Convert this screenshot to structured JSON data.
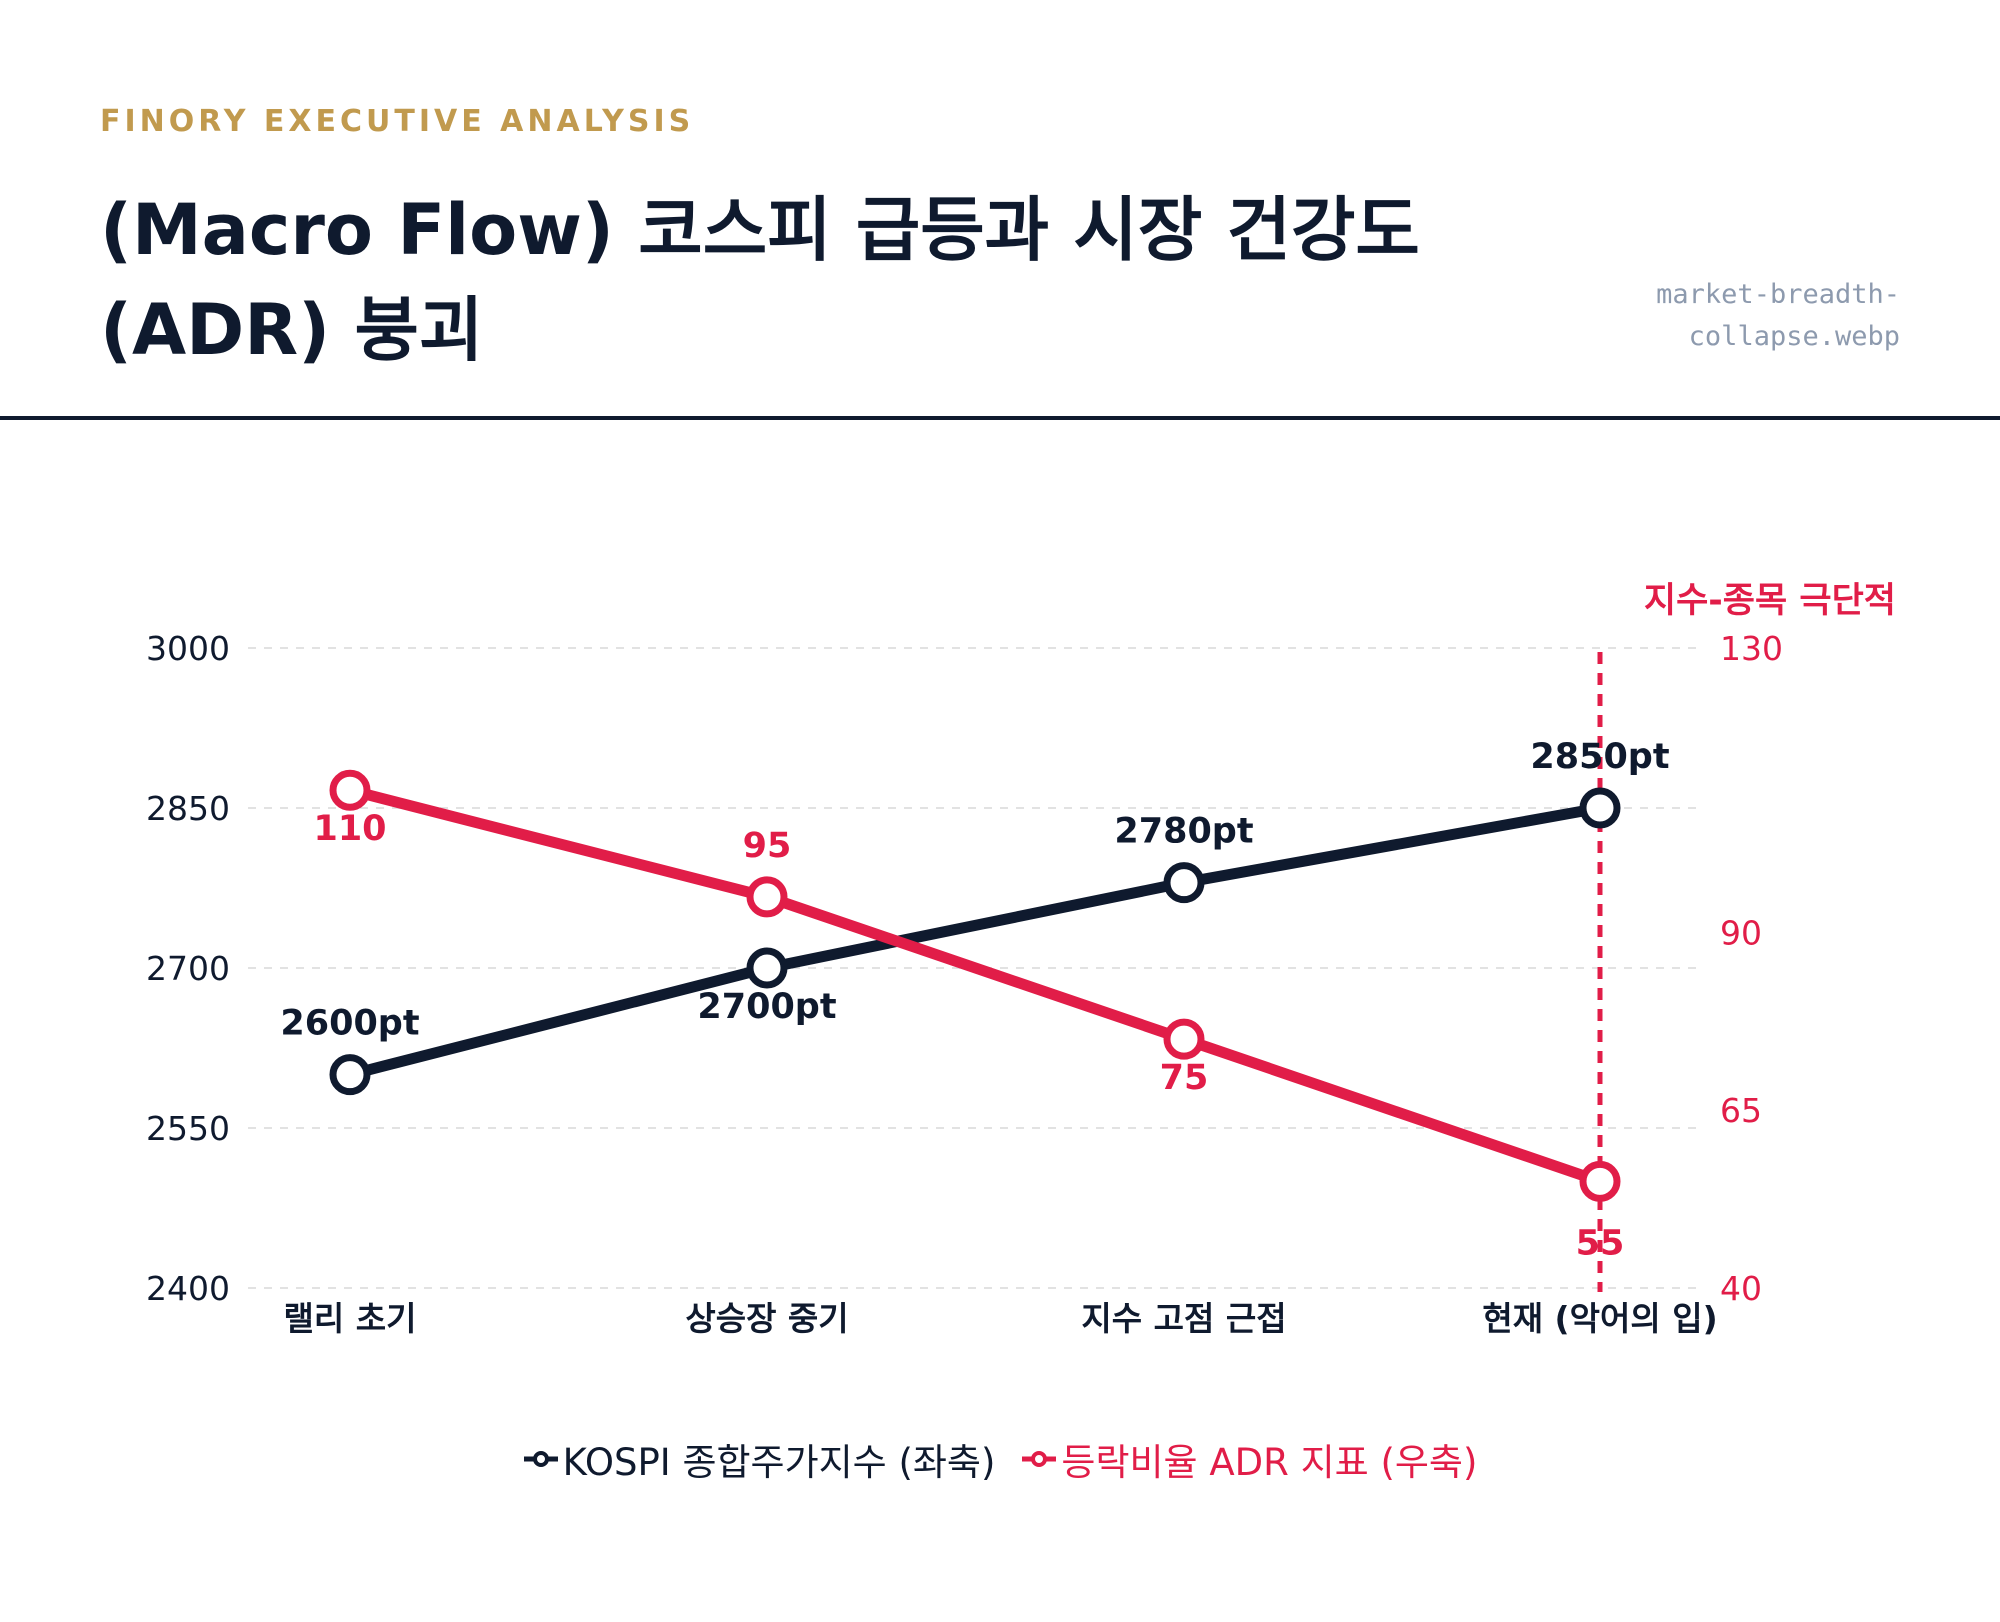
{
  "header": {
    "kicker": "FINORY EXECUTIVE ANALYSIS",
    "title": "(Macro Flow) 코스피 급등과 시장 건강도 (ADR) 붕괴",
    "filename": "market-breadth-collapse.webp"
  },
  "colors": {
    "kospi": "#0F1A2E",
    "adr": "#E11D48",
    "kicker": "#C19A4E",
    "grid": "#E2E2E2"
  },
  "chart_data": {
    "type": "line",
    "categories": [
      "랠리 초기",
      "상승장 중기",
      "지수 고점 근접",
      "현재 (악어의 입)"
    ],
    "left_axis": {
      "ticks": [
        "2400",
        "2550",
        "2700",
        "2850",
        "3000"
      ],
      "range": [
        2400,
        3000
      ]
    },
    "right_axis": {
      "ticks": [
        "40",
        "65",
        "90",
        "130"
      ],
      "range": [
        40,
        130
      ]
    },
    "grid": true,
    "legend_position": "bottom",
    "series": [
      {
        "name": "KOSPI 종합주가지수 (좌축)",
        "axis": "left",
        "values": [
          2600,
          2700,
          2780,
          2850
        ],
        "labels": [
          "2600pt",
          "2700pt",
          "2780pt",
          "2850pt"
        ]
      },
      {
        "name": "등락비율 ADR 지표 (우축)",
        "axis": "right",
        "values": [
          110,
          95,
          75,
          55
        ],
        "labels": [
          "110",
          "95",
          "75",
          "55"
        ]
      }
    ],
    "annotation": {
      "text": "지수-종목 극단적",
      "category": "현재 (악어의 입)"
    }
  }
}
